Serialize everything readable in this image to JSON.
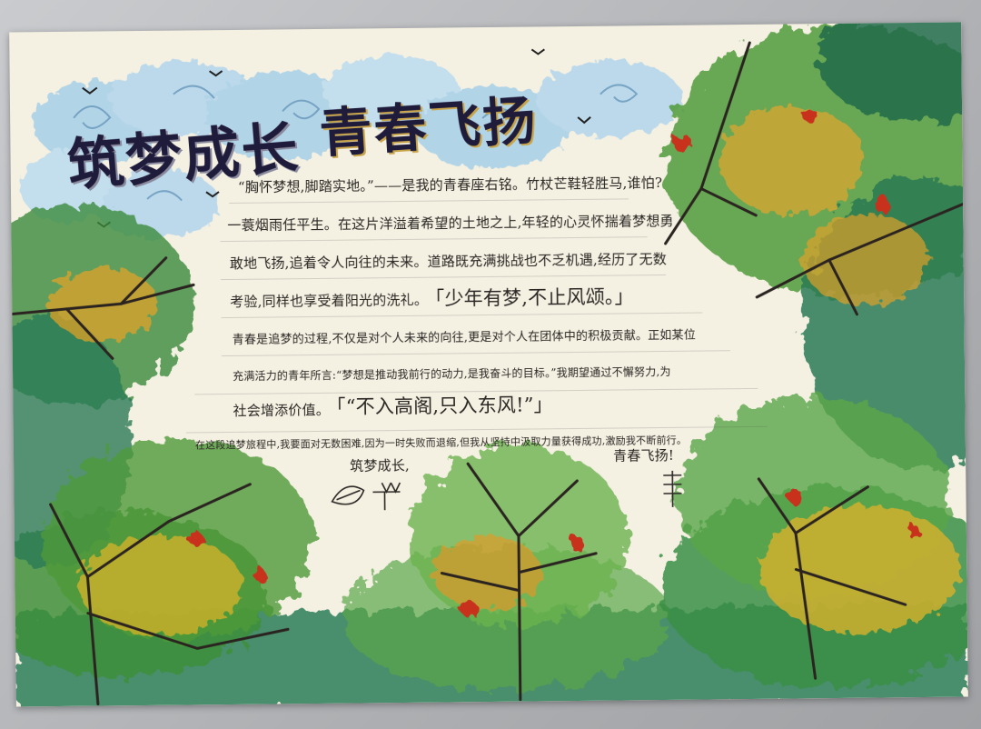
{
  "poster": {
    "title_part1": "筑梦成长",
    "title_part2": "青春飞扬",
    "body": {
      "line1": "“胸怀梦想,脚踏实地。”——是我的青春座右铭。竹杖芒鞋轻胜马,谁怕?",
      "line2": "一蓑烟雨任平生。在这片洋溢着希望的土地之上,年轻的心灵怀揣着梦想勇",
      "line3": "敢地飞扬,追着令人向往的未来。道路既充满挑战也不乏机遇,经历了无数",
      "line4a": "考验,同样也享受着阳光的洗礼。",
      "line4b": "「少年有梦,不止风颂。」",
      "line5": "青春是追梦的过程,不仅是对个人未来的向往,更是对个人在团体中的积极贡献。正如某位",
      "line6": "充满活力的青年所言:“梦想是推动我前行的动力,是我奋斗的目标。”我期望通过不懈努力,为",
      "line7a": "社会增添价值。",
      "line7b": "「“不入高阁,只入东风!”」",
      "line8": "在这段追梦旅程中,我要面对无数困难,因为一时失败而退缩,但我从坚持中汲取力量获得成功,激励我不断前行。",
      "sign_left": "筑梦成长,",
      "sign_right": "青春飞扬!"
    },
    "colors": {
      "paper": "#f4f0e2",
      "title_ink": "#1f1b3a",
      "cloud_blue": "#8fc3e6",
      "leaf_green": "#4f9a3a",
      "dark_green": "#1f6b4a",
      "leaf_orange": "#e09a2a",
      "leaf_red": "#c8321e"
    }
  }
}
